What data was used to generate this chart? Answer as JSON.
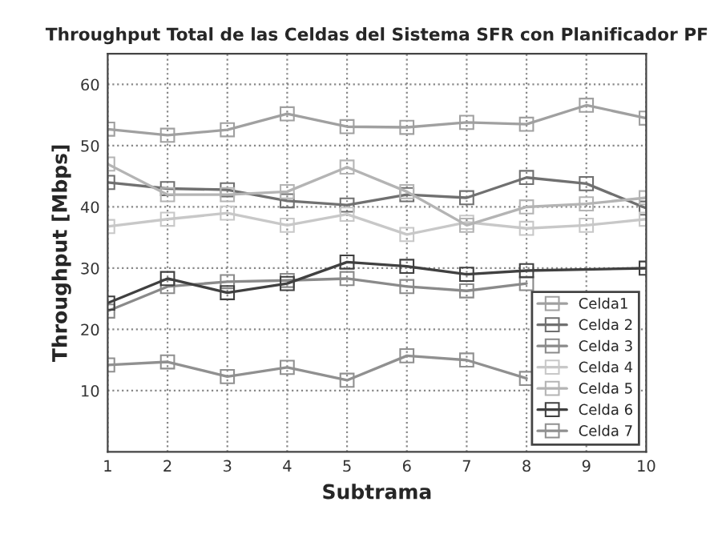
{
  "chart_data": {
    "type": "line",
    "title": "Throughput Total de las Celdas del Sistema SFR con Planificador PF",
    "xlabel": "Subtrama",
    "ylabel": "Throughput [Mbps]",
    "x": [
      1,
      2,
      3,
      4,
      5,
      6,
      7,
      8,
      9,
      10
    ],
    "series": [
      {
        "name": "Celda1",
        "color": "#a0a0a0",
        "values": [
          52.7,
          51.7,
          52.6,
          55.2,
          53.1,
          53.0,
          53.8,
          53.5,
          56.6,
          54.5
        ]
      },
      {
        "name": "Celda 2",
        "color": "#707070",
        "values": [
          44.0,
          43.0,
          42.8,
          41.0,
          40.3,
          42.0,
          41.5,
          44.8,
          43.8,
          39.8
        ]
      },
      {
        "name": "Celda 3",
        "color": "#8a8a8a",
        "values": [
          23.0,
          27.0,
          27.8,
          28.0,
          28.3,
          27.0,
          26.3,
          27.5,
          null,
          null
        ]
      },
      {
        "name": "Celda 4",
        "color": "#c8c8c8",
        "values": [
          36.8,
          38.0,
          39.0,
          37.0,
          38.8,
          35.5,
          37.5,
          36.5,
          37.0,
          38.0
        ]
      },
      {
        "name": "Celda 5",
        "color": "#b4b4b4",
        "values": [
          47.0,
          42.0,
          42.0,
          42.5,
          46.5,
          42.5,
          37.0,
          40.0,
          40.5,
          41.5
        ]
      },
      {
        "name": "Celda 6",
        "color": "#404040",
        "values": [
          24.3,
          28.3,
          26.0,
          27.5,
          31.0,
          30.3,
          29.0,
          29.6,
          null,
          30.0
        ]
      },
      {
        "name": "Celda 7",
        "color": "#909090",
        "values": [
          14.2,
          14.7,
          12.3,
          13.8,
          11.7,
          15.7,
          15.0,
          12.0,
          null,
          null
        ]
      }
    ],
    "xlim": [
      1,
      10
    ],
    "xticks": [
      1,
      2,
      3,
      4,
      5,
      6,
      7,
      8,
      9,
      10
    ],
    "ylim": [
      0,
      65
    ],
    "yticks": [
      10,
      20,
      30,
      40,
      50,
      60
    ],
    "grid": true,
    "legend": "bottom right",
    "marker": "square",
    "line_style": "solid"
  }
}
